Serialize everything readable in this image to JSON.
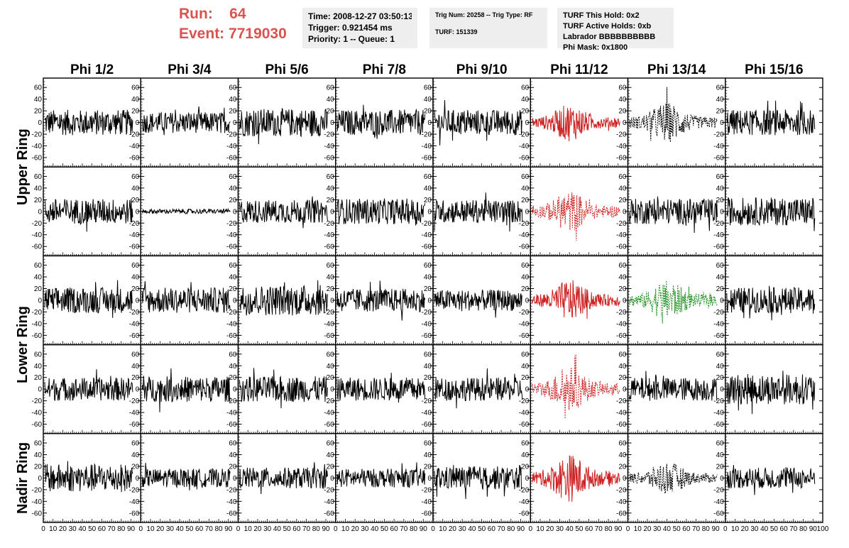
{
  "header": {
    "run_label": "Run:",
    "run_value": "64",
    "event_label": "Event:",
    "event_value": "7719030",
    "colors": {
      "run_text": "#d9534f",
      "box_bg": "#eeeeee"
    }
  },
  "info_time": {
    "time": "Time: 2008-12-27 03:50:13",
    "trigger": "Trigger: 0.921454 ms",
    "priority": "Priority: 1 -- Queue: 1"
  },
  "info_trig": {
    "trig": "Trig Num: 20258 -- Trig Type: RF",
    "turf": "TURF: 151339"
  },
  "info_turf": {
    "hold": "TURF This Hold: 0x2",
    "active": "TURF Active Holds: 0xb",
    "labrador": "Labrador BBBBBBBBBB",
    "phimask": "Phi Mask: 0x1800"
  },
  "chart_data": {
    "type": "line",
    "title": "",
    "columns": [
      "Phi 1/2",
      "Phi 3/4",
      "Phi 5/6",
      "Phi 7/8",
      "Phi 9/10",
      "Phi 11/12",
      "Phi 13/14",
      "Phi 15/16"
    ],
    "ring_labels": [
      {
        "label": "Upper Ring",
        "rows": [
          0,
          1
        ]
      },
      {
        "label": "Lower Ring",
        "rows": [
          2,
          3
        ]
      },
      {
        "label": "Nadir Ring",
        "rows": [
          4
        ]
      }
    ],
    "ylim": [
      -70,
      70
    ],
    "yticks": [
      -60,
      -40,
      -20,
      0,
      20,
      40,
      60
    ],
    "xlim": [
      0,
      100
    ],
    "xticks": [
      0,
      10,
      20,
      30,
      40,
      50,
      60,
      70,
      80,
      90,
      100
    ],
    "xtick_labels": [
      "0",
      "10",
      "20",
      "30",
      "40",
      "50",
      "60",
      "70",
      "80",
      "90",
      "100"
    ],
    "grid": false,
    "colors": {
      "normal": "#000000",
      "red": "#cc2222",
      "green": "#1f8f1f"
    },
    "panels": [
      [
        {
          "color": "normal",
          "dashed": false,
          "amp": 22
        },
        {
          "color": "normal",
          "dashed": false,
          "amp": 18
        },
        {
          "color": "normal",
          "dashed": false,
          "amp": 24
        },
        {
          "color": "normal",
          "dashed": false,
          "amp": 22
        },
        {
          "color": "normal",
          "dashed": false,
          "amp": 22
        },
        {
          "color": "red",
          "dashed": false,
          "amp": 20,
          "burst": true
        },
        {
          "color": "normal",
          "dashed": true,
          "amp": 22,
          "burst": true
        },
        {
          "color": "normal",
          "dashed": false,
          "amp": 22
        }
      ],
      [
        {
          "color": "normal",
          "dashed": false,
          "amp": 22
        },
        {
          "color": "normal",
          "dashed": false,
          "amp": 4
        },
        {
          "color": "normal",
          "dashed": false,
          "amp": 20
        },
        {
          "color": "normal",
          "dashed": false,
          "amp": 22
        },
        {
          "color": "normal",
          "dashed": false,
          "amp": 20
        },
        {
          "color": "red",
          "dashed": true,
          "amp": 22,
          "burst": true
        },
        {
          "color": "normal",
          "dashed": false,
          "amp": 22
        },
        {
          "color": "normal",
          "dashed": false,
          "amp": 24
        }
      ],
      [
        {
          "color": "normal",
          "dashed": false,
          "amp": 22
        },
        {
          "color": "normal",
          "dashed": false,
          "amp": 22
        },
        {
          "color": "normal",
          "dashed": false,
          "amp": 26
        },
        {
          "color": "normal",
          "dashed": false,
          "amp": 20
        },
        {
          "color": "normal",
          "dashed": false,
          "amp": 18
        },
        {
          "color": "red",
          "dashed": false,
          "amp": 22,
          "burst": true
        },
        {
          "color": "green",
          "dashed": true,
          "amp": 22,
          "burst": true
        },
        {
          "color": "normal",
          "dashed": false,
          "amp": 22
        }
      ],
      [
        {
          "color": "normal",
          "dashed": false,
          "amp": 20
        },
        {
          "color": "normal",
          "dashed": false,
          "amp": 22
        },
        {
          "color": "normal",
          "dashed": false,
          "amp": 22
        },
        {
          "color": "normal",
          "dashed": false,
          "amp": 20
        },
        {
          "color": "normal",
          "dashed": false,
          "amp": 20
        },
        {
          "color": "red",
          "dashed": true,
          "amp": 24,
          "burst": true
        },
        {
          "color": "normal",
          "dashed": false,
          "amp": 20
        },
        {
          "color": "normal",
          "dashed": false,
          "amp": 26
        }
      ],
      [
        {
          "color": "normal",
          "dashed": false,
          "amp": 24
        },
        {
          "color": "normal",
          "dashed": false,
          "amp": 16
        },
        {
          "color": "normal",
          "dashed": false,
          "amp": 18
        },
        {
          "color": "normal",
          "dashed": false,
          "amp": 16
        },
        {
          "color": "normal",
          "dashed": false,
          "amp": 20
        },
        {
          "color": "red",
          "dashed": false,
          "amp": 26,
          "burst": true
        },
        {
          "color": "normal",
          "dashed": true,
          "amp": 18,
          "burst": true
        },
        {
          "color": "normal",
          "dashed": false,
          "amp": 18
        }
      ]
    ]
  }
}
